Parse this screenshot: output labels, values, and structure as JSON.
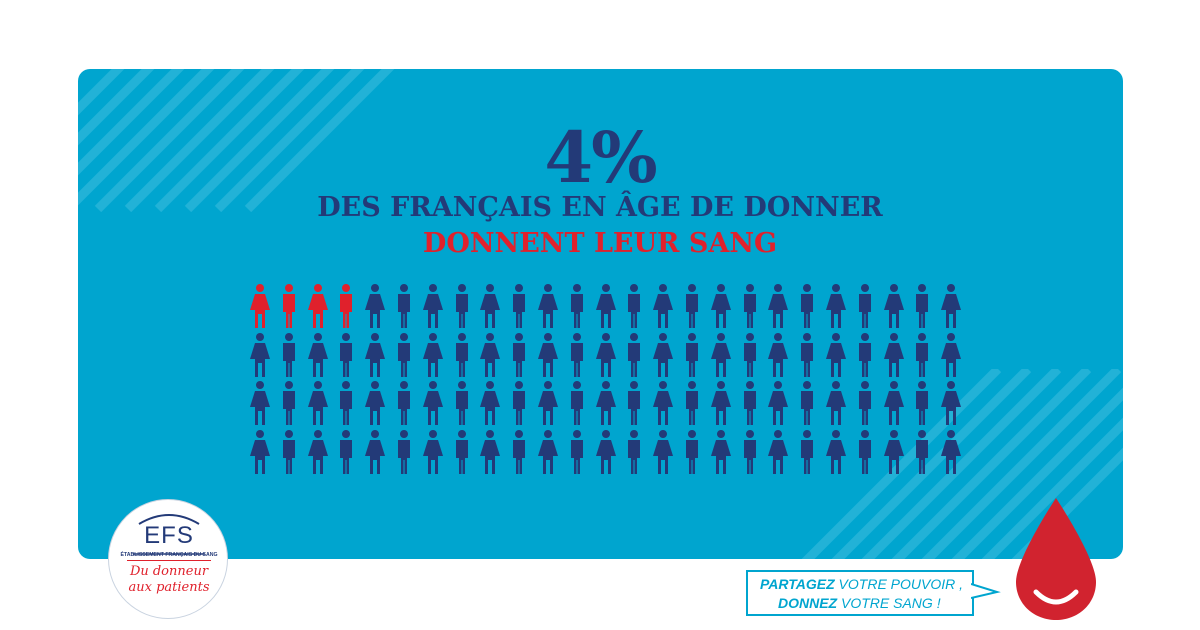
{
  "headline": {
    "percent": "4%",
    "line1": "DES FRANÇAIS EN ÂGE DE DONNER",
    "line2": "DONNENT LEUR SANG"
  },
  "figures": {
    "total": 100,
    "donors": 4,
    "rows": 4,
    "per_row": 25
  },
  "colors": {
    "panel": "#00a5cf",
    "navy": "#233a78",
    "red": "#e0212c"
  },
  "logo": {
    "name": "EFS",
    "subtitle": "ÉTABLISSEMENT FRANÇAIS DU SANG",
    "tagline_1": "Du donneur",
    "tagline_2": "aux patients"
  },
  "cta": {
    "line1_bold": "PARTAGEZ",
    "line1_rest": " VOTRE POUVOIR ,",
    "line2_bold": "DONNEZ",
    "line2_rest": " VOTRE SANG !"
  },
  "icons": [
    "woman-icon",
    "man-icon",
    "blood-drop-icon"
  ]
}
